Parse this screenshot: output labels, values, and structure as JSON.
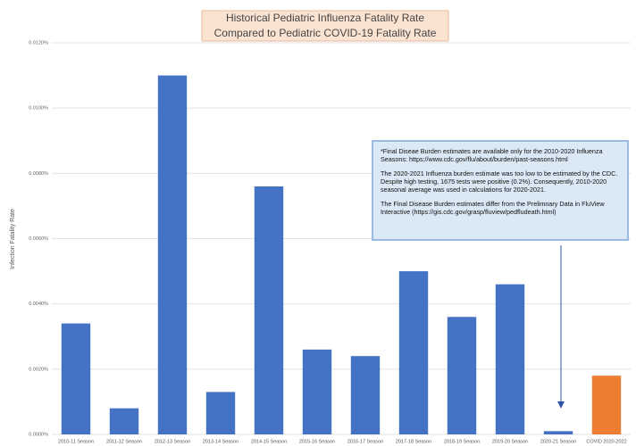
{
  "chart_data": {
    "type": "bar",
    "title": "Historical Pediatric Influenza Fatality Rate",
    "subtitle": "Compared to Pediatric COVID-19 Fatality Rate",
    "y_label": "Infection Fatality Rate",
    "categories": [
      "2010-11 Season",
      "2011-12 Season",
      "2012-13 Season",
      "2013-14 Season",
      "2014-15 Season",
      "2015-16 Season",
      "2016-17 Season",
      "2017-18 Season",
      "2018-19 Season",
      "2019-20 Season",
      "2020-21 Season",
      "COVID 2020-2022"
    ],
    "values": [
      0.0034,
      0.0008,
      0.011,
      0.0013,
      0.0076,
      0.0026,
      0.0024,
      0.005,
      0.0036,
      0.0046,
      0.0001,
      0.0018
    ],
    "colors": [
      "#4472c4",
      "#4472c4",
      "#4472c4",
      "#4472c4",
      "#4472c4",
      "#4472c4",
      "#4472c4",
      "#4472c4",
      "#4472c4",
      "#4472c4",
      "#4472c4",
      "#ed7d31"
    ],
    "ylim": [
      0,
      0.012
    ],
    "yticks": [
      {
        "value": 0,
        "label": "0.0000%"
      },
      {
        "value": 0.002,
        "label": "0.0020%"
      },
      {
        "value": 0.004,
        "label": "0.0040%"
      },
      {
        "value": 0.006,
        "label": "0.0060%"
      },
      {
        "value": 0.008,
        "label": "0.0080%"
      },
      {
        "value": 0.01,
        "label": "0.0100%"
      },
      {
        "value": 0.012,
        "label": "0.0120%"
      }
    ],
    "grid": true,
    "annotation": [
      "*Final Diseae Burden estimates are available only for the 2010-2020 Influenza Seasons: https://www.cdc.gov/flu/about/burden/past-seasons.html",
      "The 2020-2021 Influenza burden estimate was too low to be estimated by the CDC. Despite high testing, 1675 tests were positive (0.2%).  Consequently, 2010-2020 seasonal average was used in calculations for 2020-2021.",
      "The Final Disease Burden estimates differ from the Prelimnary Data in FluView Interactive (https://gis.cdc.gov/grasp/fluview/pedfludeath.html)"
    ]
  }
}
